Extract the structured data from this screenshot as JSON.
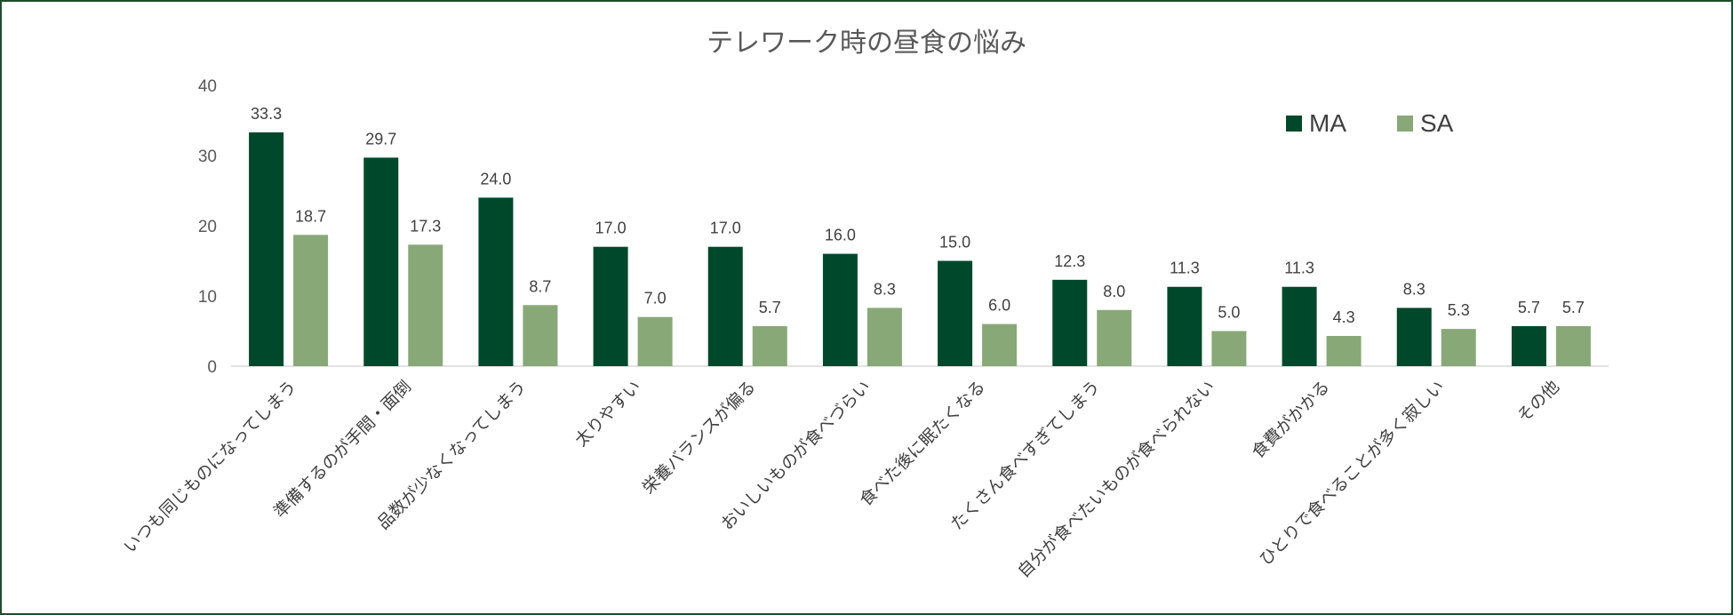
{
  "chart_data": {
    "type": "bar",
    "title": "テレワーク時の昼食の悩み",
    "categories": [
      "いつも同じものになってしまう",
      "準備するのが手間・面倒",
      "品数が少なくなってしまう",
      "太りやすい",
      "栄養バランスが偏る",
      "おいしいものが食べづらい",
      "食べた後に眠たくなる",
      "たくさん食べすぎてしまう",
      "自分が食べたいものが食べられない",
      "食費がかかる",
      "ひとりで食べることが多く寂しい",
      "その他"
    ],
    "series": [
      {
        "name": "MA",
        "color": "#00482b",
        "values": [
          33.3,
          29.7,
          24.0,
          17.0,
          17.0,
          16.0,
          15.0,
          12.3,
          11.3,
          11.3,
          8.3,
          5.7
        ],
        "labels": [
          "33.3",
          "29.7",
          "24.0",
          "17.0",
          "17.0",
          "16.0",
          "15.0",
          "12.3",
          "11.3",
          "11.3",
          "8.3",
          "5.7"
        ]
      },
      {
        "name": "SA",
        "color": "#88a878",
        "values": [
          18.7,
          17.3,
          8.7,
          7.0,
          5.7,
          8.3,
          6.0,
          8.0,
          5.0,
          4.3,
          5.3,
          5.7
        ],
        "labels": [
          "18.7",
          "17.3",
          "8.7",
          "7.0",
          "5.7",
          "8.3",
          "6.0",
          "8.0",
          "5.0",
          "4.3",
          "5.3",
          "5.7"
        ]
      }
    ],
    "xlabel": "",
    "ylabel": "",
    "ylim": [
      0,
      40
    ],
    "yticks": [
      "0",
      "10",
      "20",
      "30",
      "40"
    ],
    "grid": false,
    "legend": "top-right"
  }
}
